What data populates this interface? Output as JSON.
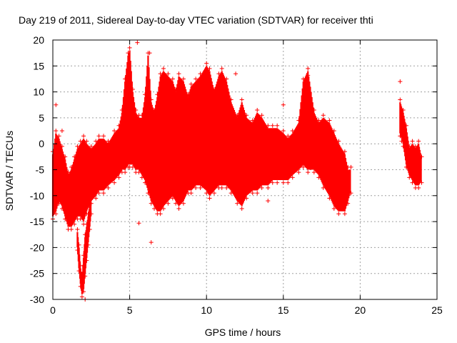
{
  "chart_data": {
    "type": "scatter",
    "title": "Day 219 of 2011, Sidereal Day-to-day VTEC variation (SDTVAR) for receiver thti",
    "xlabel": "GPS time / hours",
    "ylabel": "SDTVAR / TECUs",
    "xlim": [
      0,
      25
    ],
    "ylim": [
      -30,
      20
    ],
    "xticks": [
      0,
      5,
      10,
      15,
      20,
      25
    ],
    "yticks": [
      -30,
      -25,
      -20,
      -15,
      -10,
      -5,
      0,
      5,
      10,
      15,
      20
    ],
    "grid": true,
    "marker": "+",
    "color": "#ff0000",
    "series": [
      {
        "name": "SDTVAR",
        "envelope": {
          "x": [
            0.0,
            0.2,
            0.4,
            0.6,
            0.8,
            1.0,
            1.2,
            1.4,
            1.6,
            1.8,
            2.0,
            2.2,
            2.5,
            2.8,
            3.0,
            3.3,
            3.6,
            4.0,
            4.3,
            4.5,
            4.7,
            4.9,
            5.0,
            5.2,
            5.4,
            5.6,
            5.8,
            6.0,
            6.2,
            6.4,
            6.6,
            6.8,
            7.0,
            7.2,
            7.5,
            7.8,
            8.0,
            8.2,
            8.5,
            8.8,
            9.0,
            9.3,
            9.6,
            10.0,
            10.2,
            10.5,
            10.8,
            11.0,
            11.3,
            11.6,
            12.0,
            12.3,
            12.6,
            13.0,
            13.3,
            13.6,
            14.0,
            14.3,
            14.6,
            15.0,
            15.3,
            15.6,
            16.0,
            16.3,
            16.6,
            17.0,
            17.3,
            17.6,
            18.0,
            18.3,
            18.6,
            19.0,
            19.2,
            19.4
          ],
          "upper": [
            -2,
            2,
            1,
            -1,
            -3,
            -6,
            -5,
            -3,
            -1,
            0,
            1,
            0,
            -1,
            0,
            1,
            1,
            0,
            2,
            3,
            6,
            12,
            17,
            18,
            10,
            6,
            5,
            5,
            9,
            17,
            8,
            6,
            9,
            13,
            14,
            13,
            12,
            10,
            13,
            12,
            9,
            11,
            12,
            13,
            15,
            14,
            10,
            13,
            14,
            12,
            8,
            5,
            8,
            5,
            4,
            6,
            5,
            3,
            3,
            3,
            2,
            1,
            2,
            4,
            12,
            14,
            6,
            4,
            5,
            4,
            2,
            0,
            -2,
            -5,
            -5
          ],
          "lower": [
            -14,
            -13,
            -11,
            -12,
            -14,
            -16,
            -16,
            -15,
            -14,
            -14,
            -15,
            -13,
            -11,
            -10,
            -9,
            -9,
            -8,
            -7,
            -6,
            -5,
            -5,
            -4,
            -4,
            -4,
            -5,
            -5,
            -6,
            -7,
            -9,
            -11,
            -12,
            -13,
            -13,
            -12,
            -11,
            -10,
            -11,
            -12,
            -11,
            -9,
            -9,
            -8,
            -8,
            -9,
            -10,
            -9,
            -8,
            -8,
            -8,
            -9,
            -11,
            -12,
            -10,
            -9,
            -9,
            -8,
            -8,
            -7,
            -7,
            -7,
            -7,
            -6,
            -5,
            -4,
            -5,
            -5,
            -6,
            -8,
            -10,
            -12,
            -13,
            -13,
            -11,
            -9
          ]
        },
        "dip": {
          "x": [
            1.6,
            1.7,
            1.8,
            1.9,
            2.0,
            2.1,
            2.2,
            2.3,
            2.4,
            2.5
          ],
          "upper": [
            -17,
            -20,
            -24,
            -26,
            -22,
            -18,
            -16,
            -14,
            -12,
            -10
          ],
          "lower": [
            -20,
            -24,
            -27,
            -29,
            -28,
            -25,
            -22,
            -19,
            -16,
            -13
          ]
        },
        "late": {
          "x": [
            22.6,
            22.8,
            23.0,
            23.2,
            23.4,
            23.6,
            23.8,
            24.0
          ],
          "upper": [
            8,
            6,
            3,
            -1,
            0,
            -1,
            0,
            -3
          ],
          "lower": [
            2,
            0,
            -4,
            -6,
            -7,
            -8,
            -8,
            -7
          ]
        },
        "outliers": [
          {
            "x": 0.2,
            "y": 7.5
          },
          {
            "x": 0.6,
            "y": 2.5
          },
          {
            "x": 5.5,
            "y": 19.5
          },
          {
            "x": 6.3,
            "y": 17.5
          },
          {
            "x": 5.6,
            "y": -15.3
          },
          {
            "x": 6.4,
            "y": -19
          },
          {
            "x": 14.0,
            "y": -11
          },
          {
            "x": 15.0,
            "y": 7.5
          },
          {
            "x": 16.6,
            "y": 13.2
          },
          {
            "x": 22.6,
            "y": 12
          },
          {
            "x": 22.7,
            "y": 0.5
          },
          {
            "x": 2.1,
            "y": -30
          },
          {
            "x": 9.7,
            "y": 13
          },
          {
            "x": 11.9,
            "y": 13.5
          }
        ]
      }
    ]
  }
}
